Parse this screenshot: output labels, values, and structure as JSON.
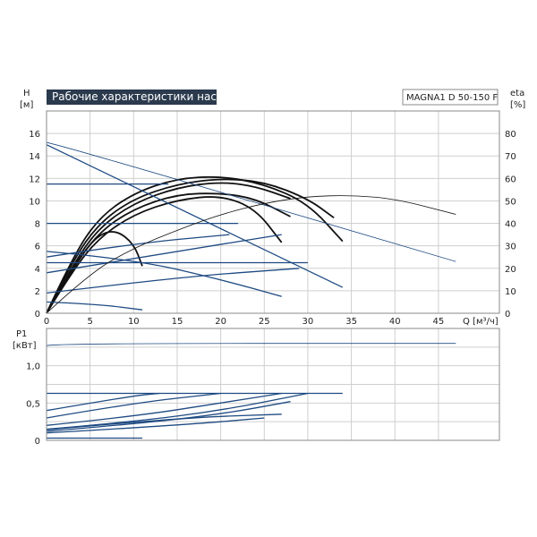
{
  "header": {
    "title": "Рабочие характеристики насоса",
    "model": "MAGNA1 D 50-150 F"
  },
  "colors": {
    "title_bg": "#2b3a4d",
    "curve_blue": "#1e4a82",
    "curve_black": "#111111",
    "grid": "#cfcfcf",
    "frame": "#888888"
  },
  "chart_data": [
    {
      "type": "line",
      "name": "H-Q",
      "ylabel_left_top": "H",
      "ylabel_left_unit": "[м]",
      "ylabel_right_top": "eta",
      "ylabel_right_unit": "[%]",
      "xlabel_unit": "Q [м³/ч]",
      "xlim": [
        0,
        52
      ],
      "ylim": [
        0,
        18
      ],
      "y2lim": [
        0,
        90
      ],
      "x_ticks": [
        0,
        5,
        10,
        15,
        20,
        25,
        30,
        35,
        40,
        45
      ],
      "y_ticks": [
        0,
        2,
        4,
        6,
        8,
        10,
        12,
        14,
        16
      ],
      "y2_ticks": [
        0,
        10,
        20,
        30,
        40,
        50,
        60,
        70,
        80
      ],
      "series": [
        {
          "style": "black",
          "points": [
            [
              0,
              0
            ],
            [
              3,
              5
            ],
            [
              6,
              8.5
            ],
            [
              10,
              10.7
            ],
            [
              15,
              12
            ],
            [
              20,
              12.2
            ],
            [
              25,
              11.5
            ],
            [
              30,
              9.8
            ],
            [
              34,
              6.4
            ]
          ]
        },
        {
          "style": "black",
          "points": [
            [
              0,
              0
            ],
            [
              3,
              4.7
            ],
            [
              6,
              8
            ],
            [
              10,
              10.2
            ],
            [
              15,
              11.5
            ],
            [
              20,
              12
            ],
            [
              25,
              11.7
            ],
            [
              30,
              10.2
            ],
            [
              33,
              8.5
            ]
          ]
        },
        {
          "style": "black",
          "points": [
            [
              0,
              0
            ],
            [
              3,
              4.3
            ],
            [
              6,
              7.6
            ],
            [
              10,
              9.8
            ],
            [
              15,
              11.2
            ],
            [
              20,
              11.7
            ],
            [
              24,
              11.3
            ],
            [
              28,
              10.2
            ]
          ]
        },
        {
          "style": "black",
          "points": [
            [
              0,
              0
            ],
            [
              3,
              4
            ],
            [
              6,
              7.2
            ],
            [
              10,
              9.3
            ],
            [
              15,
              10.6
            ],
            [
              20,
              10.7
            ],
            [
              24,
              10.2
            ],
            [
              28,
              8.6
            ]
          ]
        },
        {
          "style": "black",
          "points": [
            [
              0,
              0
            ],
            [
              3,
              3.8
            ],
            [
              6,
              6.7
            ],
            [
              10,
              8.8
            ],
            [
              15,
              10.1
            ],
            [
              20,
              10.5
            ],
            [
              24,
              9.3
            ],
            [
              27,
              6.3
            ]
          ]
        },
        {
          "style": "black",
          "points": [
            [
              0,
              0
            ],
            [
              2,
              2.6
            ],
            [
              4,
              5.2
            ],
            [
              6,
              7
            ],
            [
              8,
              7.4
            ],
            [
              10,
              6.2
            ],
            [
              11,
              4.2
            ]
          ]
        },
        {
          "style": "blue",
          "points": [
            [
              0,
              15
            ],
            [
              34,
              2.3
            ]
          ]
        },
        {
          "style": "blue",
          "points": [
            [
              0,
              11.5
            ],
            [
              14,
              11.5
            ]
          ]
        },
        {
          "style": "blue",
          "points": [
            [
              0,
              8
            ],
            [
              22,
              8
            ]
          ]
        },
        {
          "style": "blue",
          "points": [
            [
              0,
              4.5
            ],
            [
              30,
              4.5
            ]
          ]
        },
        {
          "style": "blue",
          "points": [
            [
              0,
              5
            ],
            [
              10,
              6.2
            ],
            [
              21,
              7
            ]
          ]
        },
        {
          "style": "blue",
          "points": [
            [
              0,
              3.6
            ],
            [
              15,
              5.5
            ],
            [
              27,
              7
            ]
          ]
        },
        {
          "style": "blue",
          "points": [
            [
              0,
              1.8
            ],
            [
              15,
              3.2
            ],
            [
              29,
              4
            ]
          ]
        },
        {
          "style": "blue",
          "points": [
            [
              0,
              5.5
            ],
            [
              10,
              4.8
            ],
            [
              20,
              3
            ],
            [
              27,
              1.5
            ]
          ]
        },
        {
          "style": "blue",
          "points": [
            [
              0,
              1
            ],
            [
              6,
              0.8
            ],
            [
              11,
              0.3
            ]
          ]
        },
        {
          "style": "blue-thin",
          "points": [
            [
              0,
              15.2
            ],
            [
              1,
              15.1
            ],
            [
              47,
              4.6
            ]
          ]
        }
      ],
      "efficiency": [
        {
          "style": "black-thin",
          "points": [
            [
              0,
              0
            ],
            [
              5,
              18
            ],
            [
              10,
              29
            ],
            [
              15,
              37
            ],
            [
              20,
              44
            ],
            [
              25,
              49
            ],
            [
              30,
              52
            ],
            [
              35,
              52.5
            ],
            [
              40,
              51
            ],
            [
              47,
              44
            ]
          ]
        }
      ]
    },
    {
      "type": "line",
      "name": "P1",
      "ylabel_top": "P1",
      "ylabel_unit": "[кВт]",
      "xlim": [
        0,
        52
      ],
      "ylim": [
        0,
        1.5
      ],
      "y_ticks_labels": [
        "0",
        "0,5",
        "1,0"
      ],
      "y_ticks": [
        0,
        0.5,
        1.0
      ],
      "series": [
        {
          "style": "blue",
          "points": [
            [
              0,
              0.63
            ],
            [
              34,
              0.63
            ]
          ]
        },
        {
          "style": "blue",
          "points": [
            [
              0,
              0.4
            ],
            [
              10,
              0.6
            ],
            [
              13,
              0.63
            ]
          ]
        },
        {
          "style": "blue",
          "points": [
            [
              0,
              0.3
            ],
            [
              10,
              0.5
            ],
            [
              20,
              0.63
            ]
          ]
        },
        {
          "style": "blue",
          "points": [
            [
              0,
              0.2
            ],
            [
              10,
              0.32
            ],
            [
              20,
              0.5
            ],
            [
              27,
              0.63
            ]
          ]
        },
        {
          "style": "blue",
          "points": [
            [
              0,
              0.15
            ],
            [
              10,
              0.25
            ],
            [
              20,
              0.4
            ],
            [
              30,
              0.63
            ]
          ]
        },
        {
          "style": "blue",
          "points": [
            [
              0,
              0.12
            ],
            [
              10,
              0.22
            ],
            [
              20,
              0.35
            ],
            [
              28,
              0.52
            ]
          ]
        },
        {
          "style": "blue",
          "points": [
            [
              0,
              0.14
            ],
            [
              15,
              0.3
            ],
            [
              27,
              0.35
            ]
          ]
        },
        {
          "style": "blue",
          "points": [
            [
              0,
              0.1
            ],
            [
              15,
              0.2
            ],
            [
              25,
              0.3
            ]
          ]
        },
        {
          "style": "blue",
          "points": [
            [
              0,
              0.03
            ],
            [
              11,
              0.03
            ]
          ]
        },
        {
          "style": "blue-thin",
          "points": [
            [
              0,
              1.27
            ],
            [
              1,
              1.3
            ],
            [
              47,
              1.3
            ]
          ]
        }
      ]
    }
  ]
}
